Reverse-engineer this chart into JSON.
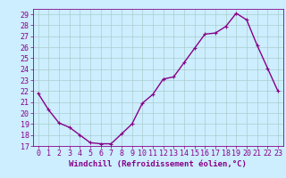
{
  "x": [
    0,
    1,
    2,
    3,
    4,
    5,
    6,
    7,
    8,
    9,
    10,
    11,
    12,
    13,
    14,
    15,
    16,
    17,
    18,
    19,
    20,
    21,
    22,
    23
  ],
  "y": [
    21.8,
    20.3,
    19.1,
    18.7,
    18.0,
    17.3,
    17.2,
    17.2,
    18.1,
    19.0,
    20.9,
    21.7,
    23.1,
    23.3,
    24.6,
    25.9,
    27.2,
    27.3,
    27.9,
    29.1,
    28.5,
    26.2,
    24.1,
    22.0
  ],
  "line_color": "#880088",
  "marker": "+",
  "marker_size": 3,
  "bg_color": "#cceeff",
  "grid_color": "#aacccc",
  "xlabel": "Windchill (Refroidissement éolien,°C)",
  "xlim": [
    -0.5,
    23.5
  ],
  "ylim": [
    17,
    29.5
  ],
  "yticks": [
    17,
    18,
    19,
    20,
    21,
    22,
    23,
    24,
    25,
    26,
    27,
    28,
    29
  ],
  "xticks": [
    0,
    1,
    2,
    3,
    4,
    5,
    6,
    7,
    8,
    9,
    10,
    11,
    12,
    13,
    14,
    15,
    16,
    17,
    18,
    19,
    20,
    21,
    22,
    23
  ],
  "tick_color": "#880088",
  "xlabel_color": "#880088",
  "xlabel_fontsize": 6.5,
  "tick_fontsize": 6.0,
  "line_width": 1.0
}
